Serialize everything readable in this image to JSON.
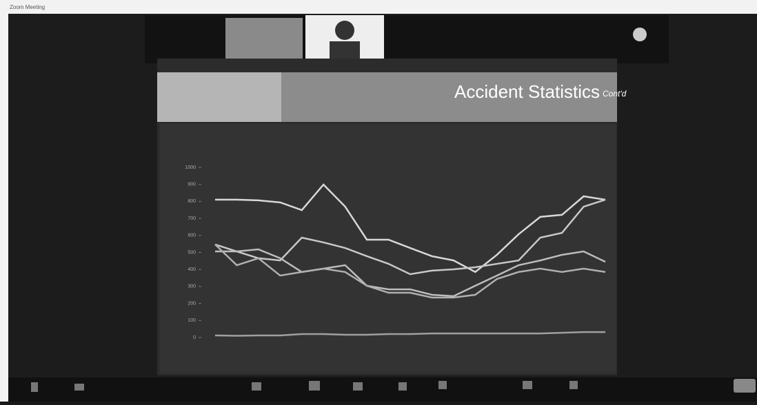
{
  "window": {
    "title": "Zoom Meeting"
  },
  "slide": {
    "title": "Accident Statistics",
    "subtitle": "Cont'd"
  },
  "chart_data": {
    "type": "line",
    "categories": [
      null,
      null,
      null,
      null,
      null,
      null,
      null,
      null,
      null,
      null,
      null,
      null,
      null,
      null,
      null,
      null,
      null,
      null,
      null
    ],
    "ylim": [
      0,
      1000
    ],
    "yticks": [
      0,
      100,
      200,
      300,
      400,
      500,
      600,
      700,
      800,
      900,
      1000
    ],
    "series": [
      {
        "color": "#d8d8d8",
        "values": [
          810,
          810,
          806,
          794,
          749,
          899,
          769,
          575,
          575,
          526,
          478,
          453,
          385,
          486,
          607,
          709,
          721,
          830,
          810
        ]
      },
      {
        "color": "#c8c8c8",
        "values": [
          547,
          506,
          466,
          453,
          587,
          559,
          526,
          478,
          433,
          372,
          393,
          401,
          413,
          433,
          453,
          587,
          615,
          769,
          810
        ]
      },
      {
        "color": "#bdbdbd",
        "values": [
          506,
          506,
          518,
          466,
          385,
          405,
          425,
          304,
          283,
          283,
          251,
          243,
          304,
          364,
          425,
          453,
          486,
          506,
          445
        ]
      },
      {
        "color": "#b0b0b0",
        "values": [
          547,
          425,
          466,
          364,
          385,
          405,
          385,
          304,
          263,
          263,
          235,
          235,
          251,
          344,
          385,
          405,
          385,
          405,
          385
        ]
      },
      {
        "color": "#a0a0a0",
        "values": [
          12,
          10,
          12,
          12,
          20,
          20,
          16,
          16,
          20,
          20,
          24,
          24,
          24,
          24,
          24,
          24,
          28,
          32,
          32
        ]
      }
    ]
  }
}
